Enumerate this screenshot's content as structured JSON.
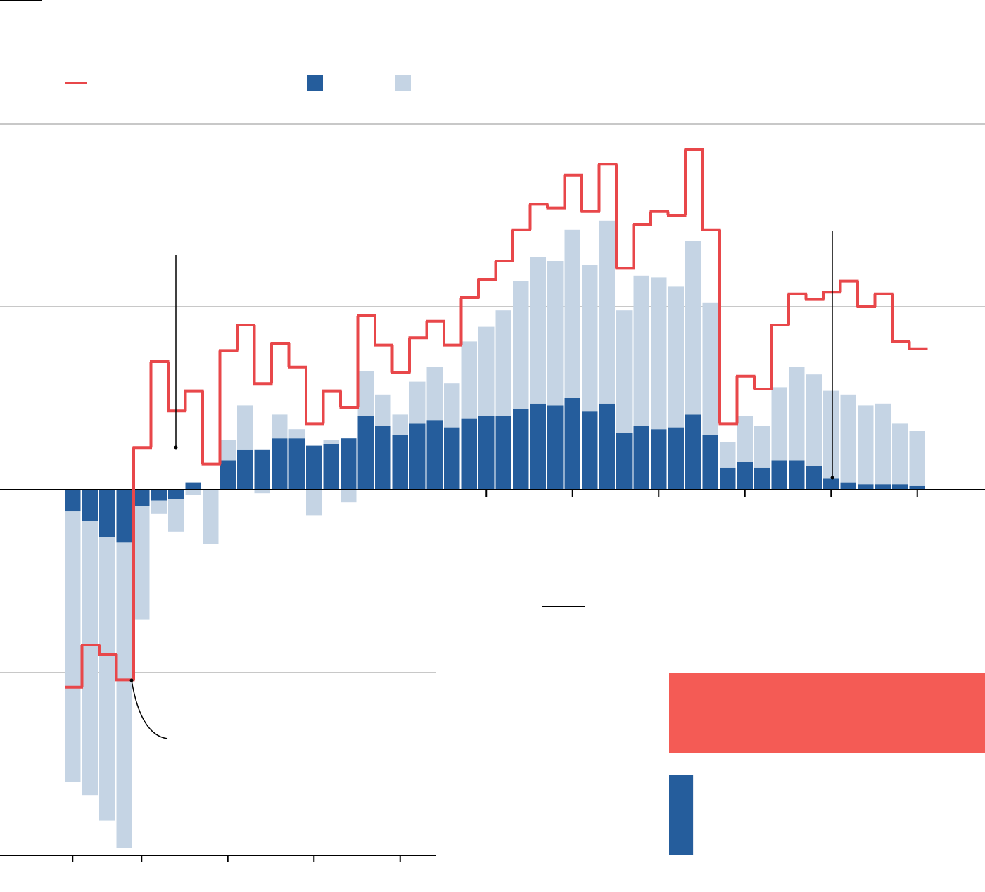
{
  "chart_data": [
    {
      "type": "stacked-bar-step",
      "categories": [
        null,
        null,
        null,
        null,
        null,
        null,
        null,
        null,
        null,
        null,
        null,
        null,
        null,
        null,
        null,
        null,
        null,
        null,
        null,
        null,
        null,
        null,
        null,
        null,
        null,
        null,
        null,
        null,
        null,
        null,
        null,
        null,
        null,
        null,
        null,
        null,
        null,
        null,
        null,
        null,
        null,
        null,
        null,
        null,
        null,
        null,
        null,
        null,
        null,
        null
      ],
      "xticks": [
        0,
        4,
        9,
        14,
        19,
        24,
        29,
        34,
        39,
        44,
        49
      ],
      "ylim": [
        -20,
        20
      ],
      "yticks": [
        -20,
        -10,
        0,
        10,
        20
      ],
      "grid": true,
      "series": [
        {
          "kind": "bar",
          "color": "#255d9c",
          "values": [
            -1.2,
            -1.7,
            -2.6,
            -2.9,
            -0.9,
            -0.6,
            -0.5,
            0.4,
            0,
            1.6,
            2.2,
            2.2,
            2.8,
            2.8,
            2.4,
            2.5,
            2.8,
            4.0,
            3.5,
            3.0,
            3.6,
            3.8,
            3.4,
            3.9,
            4.0,
            4.0,
            4.4,
            4.7,
            4.6,
            5.0,
            4.3,
            4.7,
            3.1,
            3.5,
            3.3,
            3.4,
            4.1,
            3.0,
            1.2,
            1.5,
            1.2,
            1.6,
            1.6,
            1.3,
            0.6,
            0.4,
            0.3,
            0.3,
            0.3,
            0.2
          ]
        },
        {
          "kind": "bar",
          "color": "#c5d4e4",
          "values": [
            -14.8,
            -15.0,
            -15.5,
            -16.7,
            -6.2,
            -0.7,
            -1.8,
            -0.3,
            -3.0,
            1.1,
            2.4,
            -0.2,
            1.3,
            0.5,
            -1.4,
            0.2,
            -0.7,
            2.5,
            1.7,
            1.1,
            2.3,
            2.9,
            2.4,
            4.2,
            4.9,
            5.8,
            7.0,
            8.0,
            7.9,
            9.2,
            8.0,
            10.0,
            6.7,
            8.2,
            8.3,
            7.7,
            9.5,
            7.2,
            1.4,
            2.5,
            2.3,
            4.0,
            5.1,
            5.0,
            4.8,
            4.8,
            4.3,
            4.4,
            3.3,
            3.0
          ]
        },
        {
          "kind": "step",
          "color": "#e8474a",
          "values": [
            -10.8,
            -8.5,
            -9.0,
            -10.4,
            2.3,
            7.0,
            4.3,
            5.4,
            1.4,
            7.6,
            9.0,
            5.8,
            8.0,
            6.7,
            3.6,
            5.4,
            4.5,
            9.5,
            7.9,
            6.4,
            8.3,
            9.2,
            7.9,
            10.5,
            11.5,
            12.5,
            14.2,
            15.6,
            15.4,
            17.2,
            15.2,
            17.8,
            12.1,
            14.5,
            15.2,
            15.0,
            18.6,
            14.2,
            3.6,
            6.2,
            5.5,
            9.0,
            10.7,
            10.4,
            10.8,
            11.4,
            10.0,
            10.7,
            8.1,
            7.7
          ]
        }
      ]
    },
    {
      "type": "hbar",
      "xlim": [
        0,
        100
      ],
      "categories": [
        null,
        null
      ],
      "colors": [
        "#f45b55",
        "#255d9c"
      ],
      "values": [
        100,
        7.6
      ]
    }
  ]
}
